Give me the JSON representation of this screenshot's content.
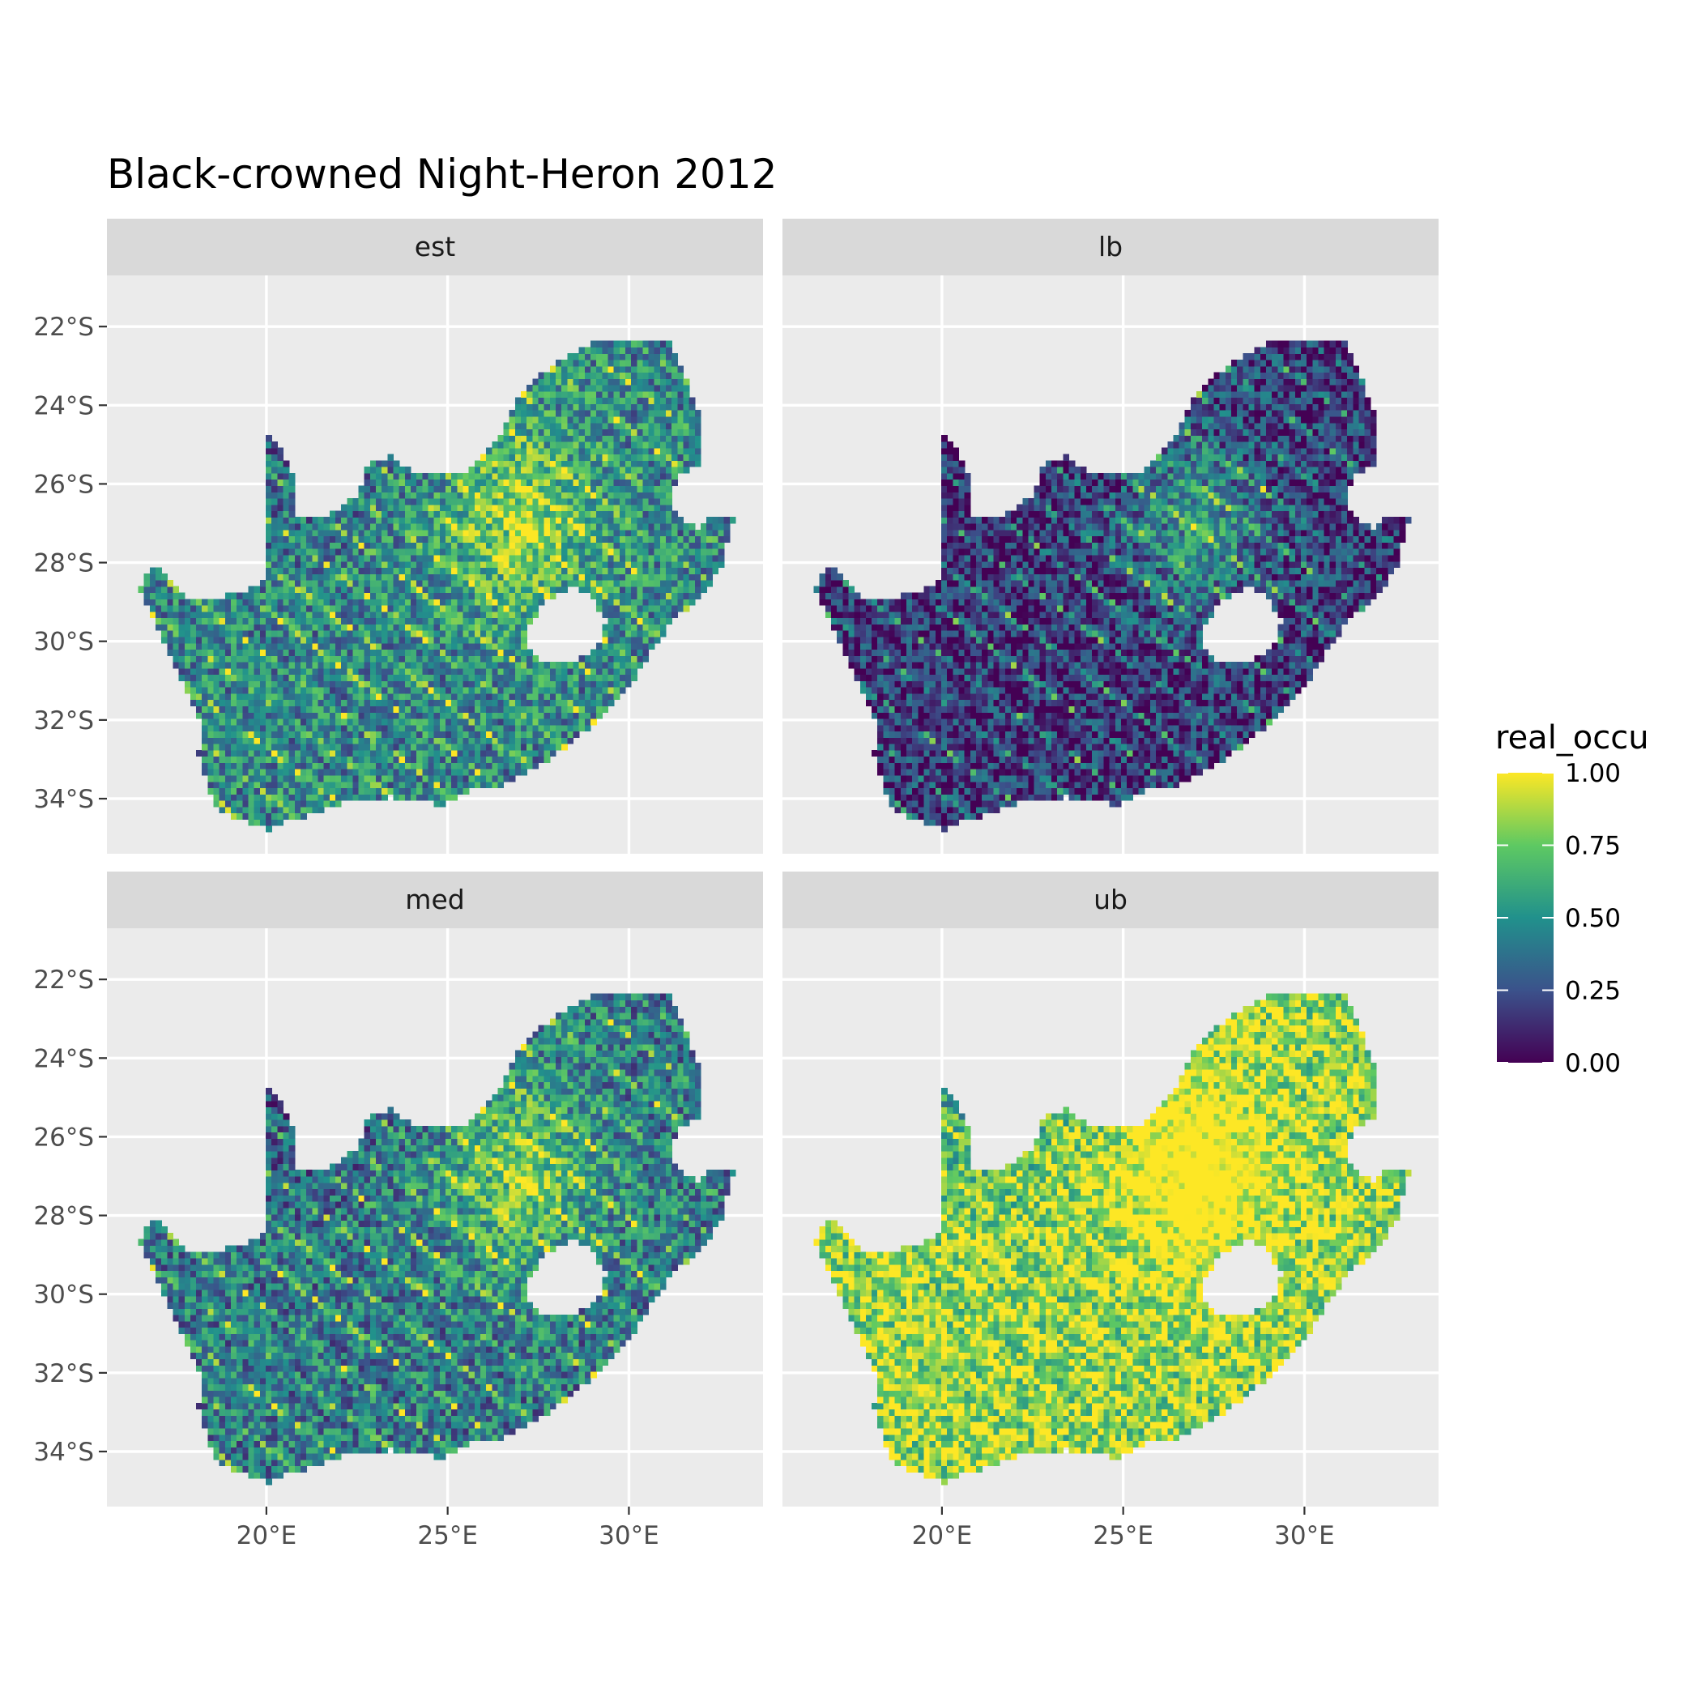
{
  "title": "Black-crowned Night-Heron 2012",
  "chart_data": {
    "type": "heatmap",
    "title": "Black-crowned Night-Heron 2012",
    "facets": [
      {
        "name": "est",
        "mean_level": 0.45,
        "lowland_level": 0.3
      },
      {
        "name": "lb",
        "mean_level": 0.15,
        "lowland_level": 0.05
      },
      {
        "name": "med",
        "mean_level": 0.4,
        "lowland_level": 0.2
      },
      {
        "name": "ub",
        "mean_level": 0.8,
        "lowland_level": 0.6
      }
    ],
    "x_ticks": [
      {
        "value": 20,
        "label": "20°E"
      },
      {
        "value": 25,
        "label": "25°E"
      },
      {
        "value": 30,
        "label": "30°E"
      }
    ],
    "y_ticks": [
      {
        "value": -22,
        "label": "22°S"
      },
      {
        "value": -24,
        "label": "24°S"
      },
      {
        "value": -26,
        "label": "26°S"
      },
      {
        "value": -28,
        "label": "28°S"
      },
      {
        "value": -30,
        "label": "30°S"
      },
      {
        "value": -32,
        "label": "32°S"
      },
      {
        "value": -34,
        "label": "34°S"
      }
    ],
    "xlim": [
      15.6,
      33.7
    ],
    "ylim": [
      -35.4,
      -20.7
    ],
    "grid": true,
    "legend": {
      "title": "real_occu",
      "position": "right",
      "range": [
        0,
        1
      ],
      "breaks": [
        {
          "value": 0,
          "label": "0.00"
        },
        {
          "value": 0.25,
          "label": "0.25"
        },
        {
          "value": 0.5,
          "label": "0.50"
        },
        {
          "value": 0.75,
          "label": "0.75"
        },
        {
          "value": 1,
          "label": "1.00"
        }
      ],
      "colors": [
        "#440154",
        "#3b528b",
        "#21918c",
        "#5ec962",
        "#fde725"
      ]
    }
  }
}
